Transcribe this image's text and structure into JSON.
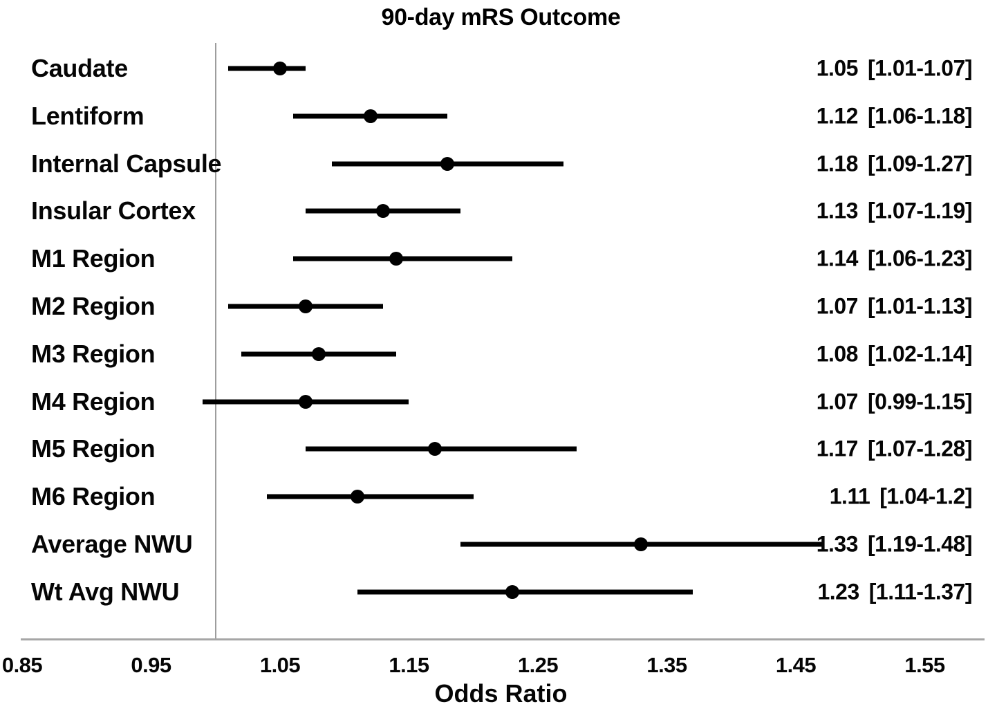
{
  "chart_data": {
    "type": "scatter",
    "variant": "forest-plot",
    "title": "90-day mRS Outcome",
    "xlabel": "Odds Ratio",
    "x_ticks": [
      0.85,
      0.95,
      1.05,
      1.15,
      1.25,
      1.35,
      1.45,
      1.55
    ],
    "x_tick_labels": [
      "0.85",
      "0.95",
      "1.05",
      "1.15",
      "1.25",
      "1.35",
      "1.45",
      "1.55"
    ],
    "xlim": [
      0.85,
      1.6
    ],
    "reference_line_x": 1.0,
    "grid": false,
    "legend": false,
    "marker_color": "#000000",
    "ci_line_color": "#000000",
    "reference_line_color": "#9d9d9d",
    "axis_line_color": "#a6a6a6",
    "rows": [
      {
        "label": "Caudate",
        "or": 1.05,
        "ci_low": 1.01,
        "ci_high": 1.07,
        "or_text": "1.05",
        "ci_text": "[1.01-1.07]"
      },
      {
        "label": "Lentiform",
        "or": 1.12,
        "ci_low": 1.06,
        "ci_high": 1.18,
        "or_text": "1.12",
        "ci_text": "[1.06-1.18]"
      },
      {
        "label": "Internal Capsule",
        "or": 1.18,
        "ci_low": 1.09,
        "ci_high": 1.27,
        "or_text": "1.18",
        "ci_text": "[1.09-1.27]"
      },
      {
        "label": "Insular Cortex",
        "or": 1.13,
        "ci_low": 1.07,
        "ci_high": 1.19,
        "or_text": "1.13",
        "ci_text": "[1.07-1.19]"
      },
      {
        "label": "M1 Region",
        "or": 1.14,
        "ci_low": 1.06,
        "ci_high": 1.23,
        "or_text": "1.14",
        "ci_text": "[1.06-1.23]"
      },
      {
        "label": "M2 Region",
        "or": 1.07,
        "ci_low": 1.01,
        "ci_high": 1.13,
        "or_text": "1.07",
        "ci_text": "[1.01-1.13]"
      },
      {
        "label": "M3 Region",
        "or": 1.08,
        "ci_low": 1.02,
        "ci_high": 1.14,
        "or_text": "1.08",
        "ci_text": "[1.02-1.14]"
      },
      {
        "label": "M4 Region",
        "or": 1.07,
        "ci_low": 0.99,
        "ci_high": 1.15,
        "or_text": "1.07",
        "ci_text": "[0.99-1.15]"
      },
      {
        "label": "M5 Region",
        "or": 1.17,
        "ci_low": 1.07,
        "ci_high": 1.28,
        "or_text": "1.17",
        "ci_text": "[1.07-1.28]"
      },
      {
        "label": "M6 Region",
        "or": 1.11,
        "ci_low": 1.04,
        "ci_high": 1.2,
        "or_text": "1.11",
        "ci_text": "[1.04-1.2]"
      },
      {
        "label": "Average NWU",
        "or": 1.33,
        "ci_low": 1.19,
        "ci_high": 1.48,
        "or_text": "1.33",
        "ci_text": "[1.19-1.48]"
      },
      {
        "label": "Wt Avg NWU",
        "or": 1.23,
        "ci_low": 1.11,
        "ci_high": 1.37,
        "or_text": "1.23",
        "ci_text": "[1.11-1.37]"
      }
    ]
  }
}
